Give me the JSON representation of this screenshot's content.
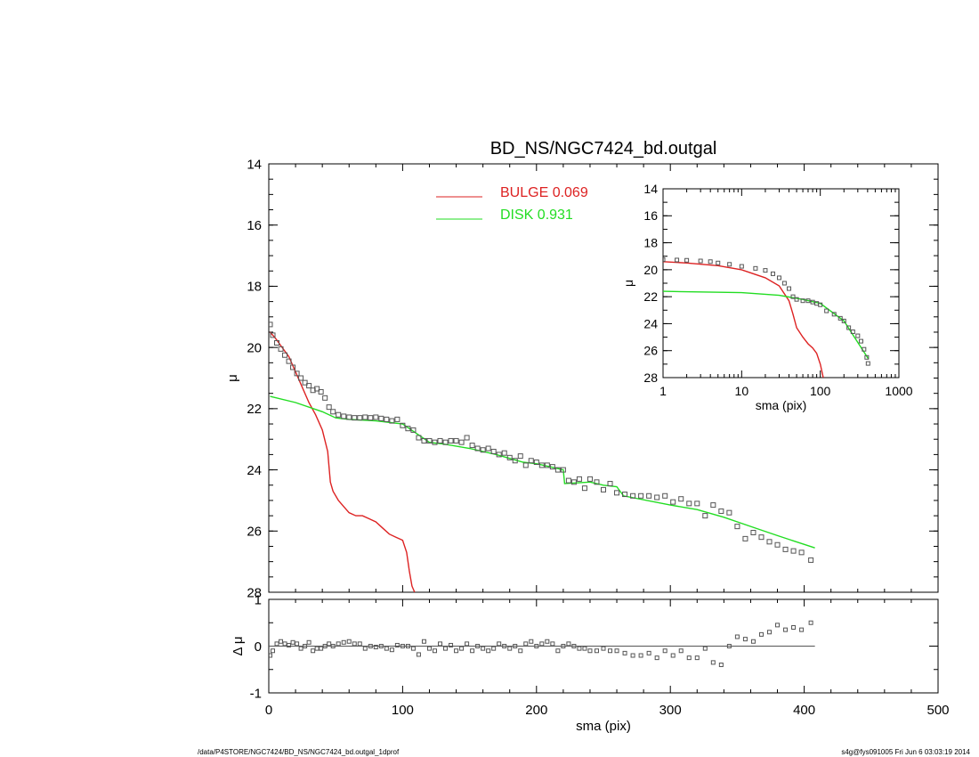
{
  "title": "BD_NS/NGC7424_bd.outgal",
  "footer_left": "/data/P4STORE/NGC7424/BD_NS/NGC7424_bd.outgal_1dprof",
  "footer_right": "s4g@fys091005  Fri Jun  6 03:03:19 2014",
  "colors": {
    "bulge": "#dd2222",
    "disk": "#22dd22",
    "data": "#555555",
    "axis": "#000000"
  },
  "chart_data": [
    {
      "id": "main",
      "type": "line",
      "xlabel": "sma (pix)",
      "ylabel": "μ",
      "xlim": [
        0,
        500
      ],
      "ylim": [
        28,
        14
      ],
      "xticks": [
        "0",
        "100",
        "200",
        "300",
        "400",
        "500"
      ],
      "yticks": [
        "14",
        "16",
        "18",
        "20",
        "22",
        "24",
        "26",
        "28"
      ],
      "legend": [
        {
          "label": "BULGE",
          "value": "0.069",
          "color": "#dd2222"
        },
        {
          "label": "DISK",
          "value": "0.931",
          "color": "#22dd22"
        }
      ],
      "series": [
        {
          "name": "BULGE",
          "color": "#dd2222",
          "x": [
            1,
            5,
            10,
            15,
            20,
            25,
            30,
            35,
            40,
            44,
            46,
            48,
            52,
            56,
            60,
            65,
            70,
            75,
            80,
            85,
            90,
            95,
            100,
            103,
            105,
            107,
            109
          ],
          "y": [
            19.5,
            19.7,
            20.0,
            20.3,
            20.8,
            21.3,
            21.8,
            22.2,
            22.7,
            23.4,
            24.4,
            24.7,
            25.0,
            25.2,
            25.4,
            25.5,
            25.5,
            25.6,
            25.7,
            25.9,
            26.1,
            26.2,
            26.3,
            26.7,
            27.3,
            27.8,
            28.0
          ]
        },
        {
          "name": "DISK",
          "color": "#22dd22",
          "x": [
            1,
            20,
            40,
            50,
            60,
            80,
            100,
            110,
            120,
            130,
            150,
            170,
            190,
            200,
            210,
            220,
            221,
            240,
            250,
            260,
            265,
            300,
            320,
            340,
            360,
            380,
            408
          ],
          "y": [
            21.6,
            21.8,
            22.1,
            22.3,
            22.35,
            22.4,
            22.5,
            22.8,
            23.1,
            23.15,
            23.3,
            23.5,
            23.75,
            23.8,
            23.9,
            24.0,
            24.45,
            24.4,
            24.5,
            24.55,
            24.85,
            25.15,
            25.3,
            25.55,
            25.85,
            26.15,
            26.55
          ]
        },
        {
          "name": "data",
          "color": "#555555",
          "x": [
            1,
            3,
            6,
            9,
            12,
            15,
            18,
            21,
            24,
            27,
            30,
            33,
            36,
            39,
            42,
            45,
            48,
            52,
            56,
            60,
            64,
            68,
            72,
            76,
            80,
            84,
            88,
            92,
            96,
            100,
            104,
            108,
            112,
            116,
            120,
            124,
            128,
            132,
            136,
            140,
            144,
            148,
            152,
            156,
            160,
            164,
            168,
            172,
            176,
            180,
            184,
            188,
            192,
            196,
            200,
            204,
            208,
            212,
            216,
            220,
            224,
            228,
            232,
            236,
            240,
            245,
            250,
            255,
            260,
            266,
            272,
            278,
            284,
            290,
            296,
            302,
            308,
            314,
            320,
            326,
            332,
            338,
            344,
            350,
            356,
            362,
            368,
            374,
            380,
            386,
            392,
            398,
            405
          ],
          "y": [
            19.25,
            19.6,
            19.85,
            20.05,
            20.25,
            20.45,
            20.65,
            20.85,
            21.0,
            21.15,
            21.25,
            21.4,
            21.35,
            21.45,
            21.65,
            21.95,
            22.1,
            22.2,
            22.25,
            22.28,
            22.3,
            22.3,
            22.28,
            22.3,
            22.28,
            22.32,
            22.35,
            22.4,
            22.35,
            22.55,
            22.65,
            22.7,
            22.95,
            23.05,
            23.05,
            23.1,
            23.05,
            23.1,
            23.05,
            23.05,
            23.1,
            22.95,
            23.2,
            23.3,
            23.35,
            23.3,
            23.4,
            23.5,
            23.45,
            23.6,
            23.7,
            23.55,
            23.85,
            23.7,
            23.75,
            23.85,
            23.85,
            23.9,
            24.0,
            24.0,
            24.35,
            24.4,
            24.3,
            24.6,
            24.3,
            24.4,
            24.65,
            24.45,
            24.75,
            24.8,
            24.85,
            24.85,
            24.85,
            24.9,
            24.85,
            25.05,
            24.95,
            25.1,
            25.1,
            25.5,
            25.15,
            25.35,
            25.4,
            25.85,
            26.25,
            26.05,
            26.2,
            26.35,
            26.45,
            26.6,
            26.65,
            26.7,
            26.95
          ]
        }
      ]
    },
    {
      "id": "residual",
      "type": "scatter",
      "xlabel": "sma (pix)",
      "ylabel": "Δ μ",
      "xlim": [
        0,
        500
      ],
      "ylim": [
        -1,
        1
      ],
      "xticks": [
        "0",
        "100",
        "200",
        "300",
        "400",
        "500"
      ],
      "yticks": [
        "1",
        "0",
        "-1"
      ],
      "series": [
        {
          "name": "residual",
          "color": "#555555",
          "x": [
            1,
            3,
            6,
            9,
            12,
            15,
            18,
            21,
            24,
            27,
            30,
            33,
            36,
            39,
            42,
            45,
            48,
            52,
            56,
            60,
            64,
            68,
            72,
            76,
            80,
            84,
            88,
            92,
            96,
            100,
            104,
            108,
            112,
            116,
            120,
            124,
            128,
            132,
            136,
            140,
            144,
            148,
            152,
            156,
            160,
            164,
            168,
            172,
            176,
            180,
            184,
            188,
            192,
            196,
            200,
            204,
            208,
            212,
            216,
            220,
            224,
            228,
            232,
            236,
            240,
            245,
            250,
            255,
            260,
            266,
            272,
            278,
            284,
            290,
            296,
            302,
            308,
            314,
            320,
            326,
            332,
            338,
            344,
            350,
            356,
            362,
            368,
            374,
            380,
            386,
            392,
            398,
            405
          ],
          "y": [
            -0.2,
            -0.1,
            0.05,
            0.1,
            0.05,
            0.02,
            0.08,
            0.05,
            -0.05,
            0.0,
            0.08,
            -0.1,
            -0.05,
            -0.05,
            0.0,
            0.05,
            0.0,
            0.05,
            0.08,
            0.1,
            0.05,
            0.05,
            -0.05,
            0.0,
            -0.02,
            0.0,
            -0.05,
            -0.08,
            0.02,
            0.0,
            0.0,
            -0.05,
            -0.18,
            0.1,
            -0.05,
            -0.1,
            0.05,
            -0.05,
            0.02,
            -0.1,
            -0.05,
            0.05,
            -0.1,
            0.0,
            -0.05,
            -0.1,
            -0.05,
            0.05,
            0.0,
            -0.05,
            0.0,
            -0.1,
            0.05,
            0.1,
            0.0,
            0.05,
            0.1,
            0.05,
            -0.1,
            0.0,
            0.05,
            0.0,
            -0.05,
            -0.05,
            -0.1,
            -0.1,
            -0.05,
            -0.1,
            -0.1,
            -0.15,
            -0.2,
            -0.2,
            -0.15,
            -0.25,
            -0.1,
            -0.2,
            -0.1,
            -0.25,
            -0.25,
            -0.05,
            -0.35,
            -0.4,
            0.0,
            0.2,
            0.15,
            0.1,
            0.25,
            0.3,
            0.45,
            0.35,
            0.4,
            0.35,
            0.5
          ]
        }
      ]
    },
    {
      "id": "inset",
      "type": "line",
      "xlabel": "sma (pix)",
      "ylabel": "μ",
      "xscale": "log",
      "xlim": [
        1,
        1000
      ],
      "ylim": [
        28,
        14
      ],
      "xticks": [
        "1",
        "10",
        "100",
        "1000"
      ],
      "yticks": [
        "14",
        "16",
        "18",
        "20",
        "22",
        "24",
        "26",
        "28"
      ],
      "series": [
        {
          "name": "BULGE",
          "color": "#dd2222",
          "x": [
            1,
            2,
            5,
            10,
            20,
            30,
            40,
            45,
            50,
            60,
            70,
            80,
            90,
            100,
            109
          ],
          "y": [
            19.4,
            19.5,
            19.7,
            20.0,
            20.6,
            21.2,
            22.3,
            23.3,
            24.3,
            25.0,
            25.5,
            25.8,
            26.2,
            27.0,
            28.0
          ]
        },
        {
          "name": "DISK",
          "color": "#22dd22",
          "x": [
            1,
            10,
            30,
            60,
            100,
            200,
            408
          ],
          "y": [
            21.6,
            21.7,
            21.9,
            22.2,
            22.5,
            23.8,
            26.6
          ]
        },
        {
          "name": "data",
          "color": "#555555",
          "x": [
            1,
            1.5,
            2,
            3,
            4,
            5,
            7,
            10,
            15,
            20,
            25,
            30,
            35,
            40,
            45,
            50,
            60,
            70,
            80,
            90,
            100,
            120,
            150,
            180,
            200,
            230,
            260,
            300,
            330,
            360,
            390,
            405
          ],
          "y": [
            19.25,
            19.28,
            19.3,
            19.35,
            19.4,
            19.5,
            19.6,
            19.75,
            19.9,
            20.05,
            20.3,
            20.6,
            21.0,
            21.4,
            22.0,
            22.2,
            22.3,
            22.3,
            22.4,
            22.5,
            22.6,
            23.05,
            23.3,
            23.6,
            23.8,
            24.3,
            24.6,
            24.9,
            25.3,
            25.9,
            26.5,
            26.95
          ]
        }
      ]
    }
  ]
}
